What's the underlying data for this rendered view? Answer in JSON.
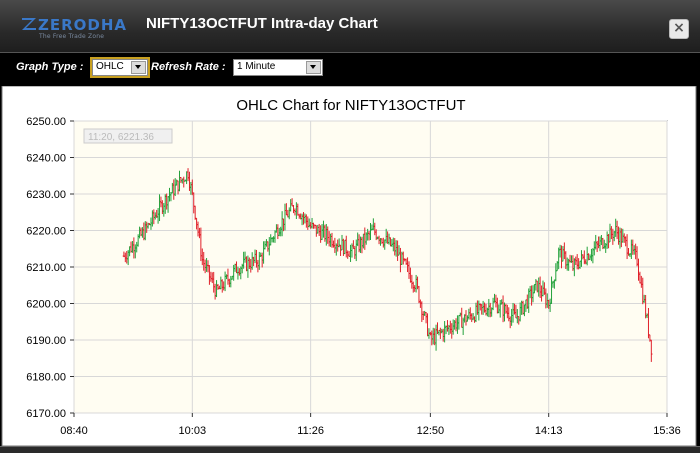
{
  "window": {
    "logo_text": "ZERODHA",
    "logo_tagline": "The Free Trade Zone",
    "title": "NIFTY13OCTFUT Intra-day Chart",
    "close_glyph": "×"
  },
  "controls": {
    "graph_type_label": "Graph Type :",
    "graph_type_value": "OHLC",
    "refresh_rate_label": "Refresh Rate :",
    "refresh_rate_value": "1 Minute"
  },
  "colors": {
    "up": "#22a13a",
    "down": "#e0202a",
    "plot_bg": "#fffdf2",
    "grid": "#d8d8d8",
    "accent_blue": "#3a78c8"
  },
  "chart_data": {
    "type": "ohlc",
    "title": "OHLC Chart for NIFTY13OCTFUT",
    "crosshair_readout": "11:20, 6221.36",
    "xlabel": "",
    "ylabel": "",
    "ylim": [
      6170,
      6250
    ],
    "xlim": [
      "08:40",
      "15:36"
    ],
    "y_ticks": [
      "6170.00",
      "6180.00",
      "6190.00",
      "6200.00",
      "6210.00",
      "6220.00",
      "6230.00",
      "6240.00",
      "6250.00"
    ],
    "x_ticks": [
      "08:40",
      "10:03",
      "11:26",
      "12:50",
      "14:13",
      "15:36"
    ],
    "grid": true,
    "legend": "none",
    "series": [
      {
        "x": [
          "09:15",
          "09:30",
          "09:45",
          "10:00",
          "10:05",
          "10:10",
          "10:20",
          "10:35",
          "10:50",
          "11:05",
          "11:15",
          "11:26",
          "11:40",
          "11:55",
          "12:10",
          "12:25",
          "12:40",
          "12:50",
          "13:05",
          "13:20",
          "13:35",
          "13:50",
          "14:05",
          "14:13",
          "14:20",
          "14:30",
          "14:45",
          "15:00",
          "15:15",
          "15:25"
        ],
        "values": [
          6213,
          6220,
          6229,
          6236,
          6225,
          6212,
          6203,
          6210,
          6212,
          6222,
          6227,
          6221,
          6218,
          6214,
          6220,
          6215,
          6205,
          6190,
          6194,
          6197,
          6200,
          6196,
          6205,
          6200,
          6214,
          6210,
          6215,
          6220,
          6212,
          6188
        ]
      }
    ]
  }
}
